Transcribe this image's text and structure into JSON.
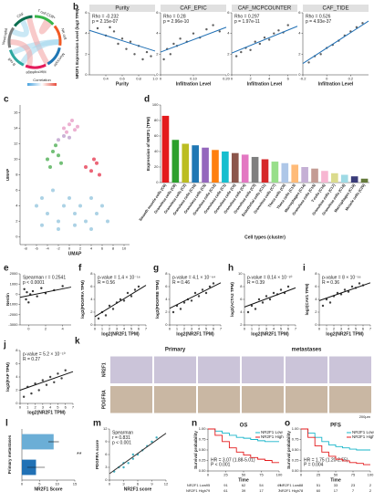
{
  "chart_data": [
    {
      "type": "chord",
      "panel": "a",
      "labels": [
        "T cell CD8+",
        "NK cell",
        "Monocyte",
        "Macrophage",
        "B cell",
        "Neutrophil",
        "CAF"
      ],
      "colors": [
        "#39b54a",
        "#f15a24",
        "#1f77b4",
        "#e41a5a",
        "#2ca8a0",
        "#7f7f7f",
        "#0b6e4f"
      ],
      "legend_title": "Correlation"
    },
    {
      "type": "scatter",
      "panel": "b",
      "title": "Purity",
      "ylabel": "NR2F1 Expression Level (log2 TPM)",
      "xlabel": "Purity",
      "annotations": [
        "Rho = -0.232",
        "p = 2.15e-07"
      ],
      "color": "#444",
      "fit_color": "#1f6fb4",
      "x": [
        0.3,
        0.4,
        0.45,
        0.5,
        0.55,
        0.6,
        0.65,
        0.7,
        0.75,
        0.8,
        0.85,
        0.9,
        0.95
      ],
      "values": [
        4.5,
        3.8,
        4.6,
        4.2,
        3,
        3.5,
        2.5,
        3.2,
        2,
        2.8,
        1.5,
        2.2,
        1.8
      ],
      "fit": [
        [
          0.2,
          4.3
        ],
        [
          1,
          2.3
        ]
      ],
      "xlim": [
        0.2,
        1
      ],
      "xticks": [
        0.4,
        0.6,
        0.8,
        {
          "value": 1,
          "label": "1.0"
        }
      ],
      "ylim": [
        0,
        6
      ],
      "yticks": [
        0,
        2,
        4,
        6
      ]
    },
    {
      "type": "scatter",
      "title": "CAF_EPIC",
      "xlabel": "Infiltration Level",
      "annotations": [
        "Rho = 0.28",
        "p = 2.96e-10"
      ],
      "color": "#444",
      "fit_color": "#1f6fb4",
      "x": [
        0.01,
        0.02,
        0.03,
        0.04,
        0.05,
        0.06,
        0.08,
        0.1,
        0.12,
        0.14,
        0.16,
        0.18
      ],
      "values": [
        1.5,
        2.5,
        2,
        3,
        2.8,
        3.5,
        3.2,
        4,
        3.6,
        4.4,
        4.8,
        4.2
      ],
      "fit": [
        [
          0,
          2.2
        ],
        [
          0.2,
          4.6
        ]
      ],
      "xlim": [
        0,
        0.2
      ],
      "xticks": [
        0,
        {
          "value": 0.1,
          "label": "0.10"
        },
        {
          "value": 0.2,
          "label": "0.20"
        }
      ],
      "ylim": [
        0,
        6
      ],
      "yticks": [
        0,
        2,
        4,
        6
      ]
    },
    {
      "type": "scatter",
      "title": "CAF_MCPCOUNTER",
      "xlabel": "Infiltration Level",
      "annotations": [
        "Rho = 0.297",
        "p = 1.97e-11"
      ],
      "color": "#444",
      "fit_color": "#1f6fb4",
      "x": [
        0.5,
        1,
        1.5,
        2,
        2.5,
        3,
        3.5,
        4,
        4.5,
        5,
        5.5,
        6
      ],
      "values": [
        1.8,
        2.2,
        2.6,
        2.4,
        3.2,
        3,
        3.6,
        3.4,
        4,
        4.3,
        4.1,
        4.8
      ],
      "fit": [
        [
          0,
          2.1
        ],
        [
          7,
          4.7
        ]
      ],
      "xlim": [
        0,
        7
      ],
      "xticks": [
        0,
        2,
        4,
        6
      ],
      "ylim": [
        0,
        6
      ],
      "yticks": [
        0,
        2,
        4,
        6
      ]
    },
    {
      "type": "scatter",
      "title": "CAF_TIDE",
      "xlabel": "Infiltration Level",
      "annotations": [
        "Rho = 0.526",
        "p = 4.93e-37"
      ],
      "color": "#444",
      "fit_color": "#1f6fb4",
      "x": [
        -0.15,
        -0.1,
        -0.05,
        0,
        0.05,
        0.1,
        0.15,
        0.2,
        0.25,
        0.3
      ],
      "values": [
        1.2,
        1.8,
        2,
        2.6,
        2.9,
        3.3,
        3.8,
        4.2,
        4.6,
        5
      ],
      "fit": [
        [
          -0.2,
          1.1
        ],
        [
          0.35,
          5.2
        ]
      ],
      "xlim": [
        -0.2,
        0.35
      ],
      "xticks": [
        {
          "value": -0.2,
          "label": "-0.2"
        },
        0,
        {
          "value": 0.2,
          "label": "0.2"
        }
      ],
      "ylim": [
        0,
        6
      ],
      "yticks": [
        0,
        2,
        4,
        6
      ]
    },
    {
      "type": "scatter",
      "panel": "c",
      "xlabel": "UMAP",
      "ylabel": "UMAP",
      "series": [
        {
          "color": "#e9a3c9",
          "x": [
            -1,
            0,
            1,
            1.5,
            0.5,
            -0.5
          ],
          "values": [
            14,
            14.5,
            13.8,
            14.2,
            15,
            13.5
          ]
        },
        {
          "color": "#5ab45f",
          "x": [
            -4,
            -3,
            -2,
            -1.5,
            -3.5,
            -2.5
          ],
          "values": [
            10,
            11,
            10.5,
            9.5,
            9,
            11.8
          ]
        },
        {
          "color": "#e84a5f",
          "x": [
            3,
            4,
            5,
            5.5,
            4.5
          ],
          "values": [
            9,
            8.5,
            9.5,
            8,
            10
          ]
        },
        {
          "color": "#9ecae1",
          "x": [
            -6,
            -5,
            -4,
            -3,
            -2,
            -1,
            0,
            1,
            2,
            3,
            4,
            5,
            6,
            7,
            -5,
            -2,
            1,
            4
          ],
          "values": [
            4,
            5,
            3,
            6,
            2,
            4,
            5,
            3,
            4,
            2,
            5,
            3,
            4,
            2,
            1.5,
            1,
            1.5,
            1
          ]
        },
        {
          "color": "#c2a5cf",
          "x": [
            -2,
            -1,
            0
          ],
          "values": [
            12.5,
            13,
            12.8
          ]
        }
      ],
      "xlim": [
        -9,
        11
      ],
      "xticks": [
        -8,
        -6,
        -4,
        -2,
        0,
        2,
        4,
        6,
        8,
        10
      ],
      "ylim": [
        -1,
        17
      ],
      "yticks": [
        0,
        2,
        4,
        6,
        8,
        10,
        12,
        14,
        16
      ]
    },
    {
      "type": "bar",
      "panel": "d",
      "ylabel": "Expression of NR2F1 (TPM)",
      "xlabel": "Cell types (cluster)",
      "categories": [
        "Smooth muscle cells (C6)",
        "Granulosa cells (C8)",
        "Granulosa cells (C2)",
        "Granulosa cells (C10)",
        "Granulosa cells (C5)",
        "Granulosa cells (C12)",
        "Granulosa cells (C1)",
        "Granulosa cells (C0)",
        "Granulosa cells (C4)",
        "Granulosa cells (C3)",
        "Endothelial cells (C11)",
        "Granulosa cells (C7)",
        "Theca cells (C9)",
        "Theca cells (C13)",
        "Macrophages (C14)",
        "Granulosa cells (C15)",
        "T-cells (C16)",
        "Granulosa cells (C17)",
        "Granulosa cells (C18)",
        "Macrophages (C19)",
        "Muscle cells (C20)"
      ],
      "values": [
        86,
        55,
        50,
        48,
        45,
        42,
        40,
        38,
        36,
        33,
        30,
        27,
        25,
        23,
        20,
        18,
        15,
        12,
        10,
        8,
        5
      ],
      "colors": [
        "#e41a1c",
        "#2ca02c",
        "#bcbd22",
        "#1f77b4",
        "#9467bd",
        "#ff7f0e",
        "#17becf",
        "#8c564b",
        "#e377c2",
        "#7f7f7f",
        "#d62728",
        "#98df8a",
        "#aec7e8",
        "#ffbb78",
        "#c5b0d5",
        "#c49c94",
        "#f7b6d2",
        "#dbdb8d",
        "#9edae5",
        "#393b79",
        "#637939"
      ],
      "ylim": [
        0,
        100
      ],
      "yticks": [
        0,
        20,
        40,
        60,
        80,
        100
      ]
    },
    {
      "type": "scatter",
      "panel": "e",
      "ylabel": "Nestin",
      "annotations": [
        "Spearman r = 0.2541",
        "p < 0.0001"
      ],
      "color": "#111",
      "fit_color": "#111",
      "x": [
        -0.5,
        -0.3,
        -0.2,
        0,
        0.2,
        0.5,
        1,
        1.5,
        2,
        3,
        4
      ],
      "values": [
        500,
        -500,
        200,
        -800,
        0,
        300,
        -200,
        600,
        100,
        400,
        800
      ],
      "fit": [
        [
          -1,
          -300
        ],
        [
          5,
          700
        ]
      ],
      "xlim": [
        -1,
        5
      ],
      "xticks": [
        0,
        2,
        4
      ],
      "ylim": [
        -3000,
        2000
      ],
      "yticks": [
        2000,
        1000,
        0,
        -1000,
        -2000,
        -3000
      ]
    },
    {
      "type": "scatter",
      "panel": "f",
      "ylabel": "log2(PDGFRA TPM)",
      "xlabel": "log2(NR2F1 TPM)",
      "annotations": [
        "p-value = 1.4 × 10⁻¹⁶",
        "R = 0.56"
      ],
      "color": "#222",
      "fit_color": "#111",
      "x": [
        0.5,
        1,
        1.5,
        2,
        2.5,
        3,
        3.5,
        4,
        4.5,
        5,
        5.5,
        6
      ],
      "values": [
        1,
        2,
        1.5,
        3,
        2.5,
        3.5,
        4,
        3.8,
        5,
        4.5,
        5.5,
        6
      ],
      "fit": [
        [
          0,
          1.3
        ],
        [
          7,
          6.2
        ]
      ],
      "xlim": [
        0,
        7
      ],
      "xticks": [
        0,
        1,
        2,
        3,
        4,
        5,
        6,
        7
      ],
      "ylim": [
        0,
        8
      ],
      "yticks": [
        0,
        2,
        4,
        6,
        8
      ]
    },
    {
      "type": "scatter",
      "panel": "g",
      "ylabel": "log2(PDGFRB TPM)",
      "xlabel": "log2(NR2F1 TPM)",
      "annotations": [
        "p-value = 4.1 × 10⁻⁶⁴",
        "R = 0.46"
      ],
      "color": "#222",
      "fit_color": "#111",
      "x": [
        0.5,
        1,
        1.5,
        2,
        2.5,
        3,
        3.5,
        4,
        4.5,
        5,
        5.5,
        6
      ],
      "values": [
        2,
        3,
        2.5,
        3.5,
        4,
        3.8,
        5,
        4.5,
        5.5,
        5,
        6,
        6.5
      ],
      "fit": [
        [
          0,
          2.6
        ],
        [
          7,
          6.6
        ]
      ],
      "xlim": [
        0,
        7
      ],
      "xticks": [
        0,
        1,
        2,
        3,
        4,
        5,
        6,
        7
      ],
      "ylim": [
        0,
        8
      ],
      "yticks": [
        0,
        2,
        4,
        6,
        8
      ]
    },
    {
      "type": "scatter",
      "panel": "h",
      "ylabel": "log2(ACTA2 TPM)",
      "xlabel": "log2(NR2F1 TPM)",
      "annotations": [
        "p-value = 8.14 × 10⁻¹⁰",
        "R = 0.39"
      ],
      "color": "#222",
      "fit_color": "#111",
      "x": [
        0.5,
        1,
        1.5,
        2,
        2.5,
        3,
        3.5,
        4,
        4.5,
        5,
        5.5,
        6
      ],
      "values": [
        4,
        5,
        4.5,
        6,
        5.5,
        6.5,
        6,
        7,
        6.8,
        7.5,
        7,
        8
      ],
      "fit": [
        [
          0,
          4.8
        ],
        [
          7,
          7.8
        ]
      ],
      "xlim": [
        0,
        7
      ],
      "xticks": [
        0,
        1,
        2,
        3,
        4,
        5,
        6,
        7
      ],
      "ylim": [
        2,
        10
      ],
      "yticks": [
        2,
        4,
        6,
        8,
        10
      ]
    },
    {
      "type": "scatter",
      "panel": "i",
      "ylabel": "log2(CAV1 TPM)",
      "xlabel": "log2(NR2F1 TPM)",
      "annotations": [
        "p-value = 8 × 10⁻¹⁶",
        "R = 0.36"
      ],
      "color": "#222",
      "fit_color": "#111",
      "x": [
        0.5,
        1,
        1.5,
        2,
        2.5,
        3,
        3.5,
        4,
        4.5,
        5,
        5.5,
        6
      ],
      "values": [
        3,
        4,
        3.5,
        4.5,
        5,
        4.8,
        5.5,
        5.2,
        6,
        5.8,
        6.5,
        6.2
      ],
      "fit": [
        [
          0,
          3.8
        ],
        [
          7,
          6.6
        ]
      ],
      "xlim": [
        0,
        7
      ],
      "xticks": [
        0,
        1,
        2,
        3,
        4,
        5,
        6,
        7
      ],
      "ylim": [
        0,
        8
      ],
      "yticks": [
        0,
        2,
        4,
        6,
        8
      ]
    },
    {
      "type": "scatter",
      "panel": "j",
      "ylabel": "log2(FAP TPM)",
      "xlabel": "log2(NR2F1 TPM)",
      "annotations": [
        "p-value = 5.2 × 10⁻¹⁰",
        "R = 0.27"
      ],
      "color": "#222",
      "fit_color": "#111",
      "x": [
        0.5,
        1,
        1.5,
        2,
        2.5,
        3,
        3.5,
        4,
        4.5,
        5,
        5.5,
        6
      ],
      "values": [
        1,
        2.5,
        1.5,
        3,
        2,
        3.5,
        2.8,
        4,
        3.2,
        4.5,
        3.8,
        5
      ],
      "fit": [
        [
          0,
          2
        ],
        [
          7,
          4.8
        ]
      ],
      "xlim": [
        0,
        7
      ],
      "xticks": [
        0,
        1,
        2,
        3,
        4,
        5,
        6,
        7
      ],
      "ylim": [
        0,
        8
      ],
      "yticks": [
        0,
        2,
        4,
        6,
        8
      ]
    },
    {
      "type": "images",
      "panel": "k",
      "columns": [
        "Primary",
        "metastases"
      ],
      "rows": [
        "NR2F1",
        "PDGFRA"
      ],
      "scale": "200μm"
    },
    {
      "type": "hbar",
      "panel": "l",
      "ylabel": "Primary metastases",
      "xlabel": "NR2F1 Score",
      "values": [
        9,
        4
      ],
      "errors": [
        1.5,
        2.5
      ],
      "colors": [
        "#6baed6",
        "#2171b5"
      ],
      "annotations": [
        "**"
      ],
      "xlim": [
        0,
        15
      ],
      "xticks": [
        0,
        5,
        10,
        15
      ]
    },
    {
      "type": "scatter",
      "panel": "m",
      "ylabel": "PDGFRA score",
      "xlabel": "NR2F1 score",
      "annotations": [
        "Spearman",
        "r = 0.831",
        "p < 0.001"
      ],
      "annotation_color": "#e41a1c",
      "color": "#1fa0b4",
      "fit_color": "#333",
      "x": [
        1,
        2,
        3,
        3,
        4,
        5,
        5,
        6,
        7,
        8,
        9,
        10
      ],
      "values": [
        2,
        3,
        3,
        4,
        4,
        5,
        6,
        6,
        7,
        8,
        9,
        10
      ],
      "fit": [
        [
          0,
          1.5
        ],
        [
          12,
          11
        ]
      ],
      "xlim": [
        0,
        12
      ],
      "xticks": [
        0,
        3,
        6,
        9,
        12
      ],
      "ylim": [
        0,
        12
      ],
      "yticks": [
        0,
        3,
        6,
        9,
        12
      ]
    },
    {
      "type": "km",
      "panel": "n",
      "title": "OS",
      "annotations": [
        "HR = 3.07 (1.88-5.01)",
        "P < 0.001"
      ],
      "xlabel": "Time",
      "ylabel": "Survival probability",
      "x": [
        0,
        10,
        20,
        30,
        40,
        50,
        60,
        70,
        80,
        90,
        100
      ],
      "series": [
        {
          "name": "NR2F1 Low",
          "color": "#17b5c9",
          "values": [
            1,
            0.95,
            0.9,
            0.85,
            0.8,
            0.78,
            0.75,
            0.72,
            0.7,
            0.7,
            0.7
          ],
          "at_risk": [
            95,
            91,
            62,
            54,
            49
          ]
        },
        {
          "name": "NR2F1 High",
          "color": "#e41a1c",
          "values": [
            1,
            0.85,
            0.7,
            0.55,
            0.45,
            0.38,
            0.32,
            0.28,
            0.25,
            0.2,
            0.2
          ],
          "at_risk": [
            79,
            61,
            39,
            17,
            7
          ]
        }
      ],
      "xlim": [
        0,
        100
      ],
      "xticks": [
        0,
        25,
        50,
        75,
        100
      ],
      "ylim": [
        0,
        1
      ],
      "yticks": [
        {
          "value": 0,
          "label": "0.00"
        },
        {
          "value": 0.25,
          "label": "0.25"
        },
        {
          "value": 0.5,
          "label": "0.50"
        },
        {
          "value": 0.75,
          "label": "0.75"
        },
        {
          "value": 1,
          "label": "1.00"
        }
      ]
    },
    {
      "type": "km",
      "panel": "o",
      "title": "PFS",
      "annotations": [
        "HR = 1.75 (1.20-2.55)",
        "P = 0.004"
      ],
      "xlabel": "Time",
      "ylabel": "Survival probability",
      "x": [
        0,
        10,
        20,
        30,
        40,
        50,
        60,
        70,
        80,
        90,
        100
      ],
      "series": [
        {
          "name": "NR2F1 Low",
          "color": "#17b5c9",
          "values": [
            1,
            0.9,
            0.8,
            0.7,
            0.62,
            0.58,
            0.55,
            0.52,
            0.5,
            0.5,
            0.5
          ],
          "at_risk": [
            88,
            51,
            33,
            23,
            2
          ]
        },
        {
          "name": "NR2F1 High",
          "color": "#e41a1c",
          "values": [
            1,
            0.8,
            0.6,
            0.45,
            0.35,
            0.28,
            0.24,
            0.2,
            0.18,
            0.15,
            0.15
          ],
          "at_risk": [
            78,
            60,
            17,
            7,
            2
          ]
        }
      ],
      "xlim": [
        0,
        100
      ],
      "xticks": [
        0,
        25,
        50,
        75,
        100
      ],
      "ylim": [
        0,
        1
      ],
      "yticks": [
        {
          "value": 0,
          "label": "0.00"
        },
        {
          "value": 0.25,
          "label": "0.25"
        },
        {
          "value": 0.5,
          "label": "0.50"
        },
        {
          "value": 0.75,
          "label": "0.75"
        },
        {
          "value": 1,
          "label": "1.00"
        }
      ]
    }
  ]
}
